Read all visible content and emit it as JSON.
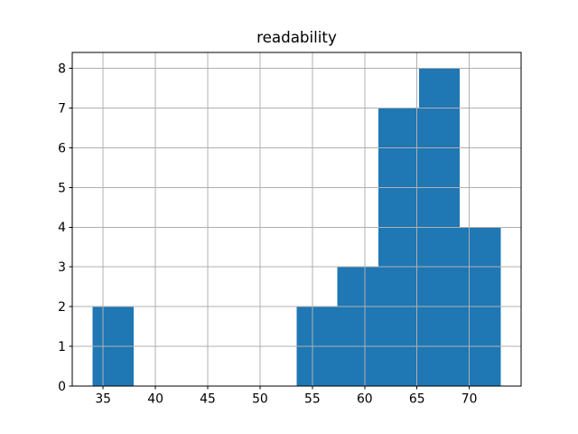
{
  "figure": {
    "background": "#ffffff"
  },
  "chart_data": {
    "type": "bar",
    "subtype": "histogram",
    "title": "readability",
    "xlabel": "",
    "ylabel": "",
    "bin_edges": [
      34.0,
      37.9,
      41.8,
      45.7,
      49.6,
      53.5,
      57.4,
      61.3,
      65.2,
      69.1,
      73.0
    ],
    "counts": [
      2,
      0,
      0,
      0,
      0,
      2,
      3,
      7,
      8,
      4
    ],
    "xticks": [
      35,
      40,
      45,
      50,
      55,
      60,
      65,
      70
    ],
    "yticks": [
      0,
      1,
      2,
      3,
      4,
      5,
      6,
      7,
      8
    ],
    "xlim": [
      32.05,
      74.95
    ],
    "ylim": [
      0,
      8.4
    ],
    "bar_color": "#1f77b4",
    "grid": true,
    "grid_on_top_of_bars": true,
    "grid_color": "#b0b0b0",
    "spine_color": "#000000",
    "tick_color": "#000000",
    "tick_label_color": "#000000",
    "legend": null
  }
}
